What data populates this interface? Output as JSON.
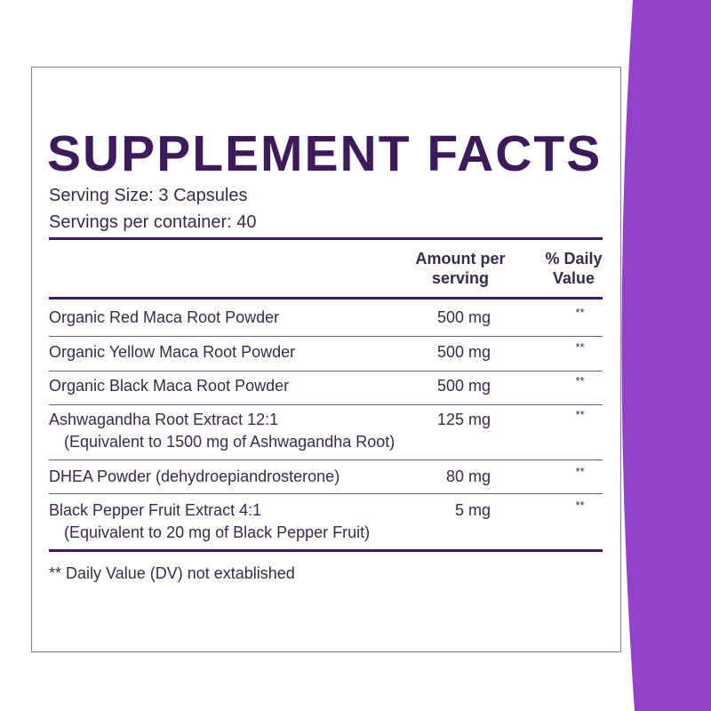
{
  "header": {
    "title": "SUPPLEMENT FACTS",
    "serving_size": "Serving Size: 3 Capsules",
    "servings_per_container": "Servings per container: 40"
  },
  "table": {
    "columns": [
      "Amount per serving",
      "% Daily Value"
    ],
    "rows": [
      {
        "name": "Organic Red Maca Root Powder",
        "amount": "500 mg",
        "dv": "**"
      },
      {
        "name": "Organic Yellow Maca Root Powder",
        "amount": "500 mg",
        "dv": "**"
      },
      {
        "name": "Organic Black Maca Root Powder",
        "amount": "500 mg",
        "dv": "**"
      },
      {
        "name": "Ashwagandha Root Extract 12:1",
        "note": "(Equivalent to 1500 mg of Ashwagandha Root)",
        "amount": "125 mg",
        "dv": "**"
      },
      {
        "name": "DHEA Powder (dehydroepiandrosterone)",
        "amount": "80 mg",
        "dv": "**"
      },
      {
        "name": "Black Pepper Fruit Extract 4:1",
        "note": "(Equivalent to 20 mg of Black Pepper Fruit)",
        "amount": "5 mg",
        "dv": "**"
      }
    ]
  },
  "footer": "** Daily Value (DV) not extablished"
}
